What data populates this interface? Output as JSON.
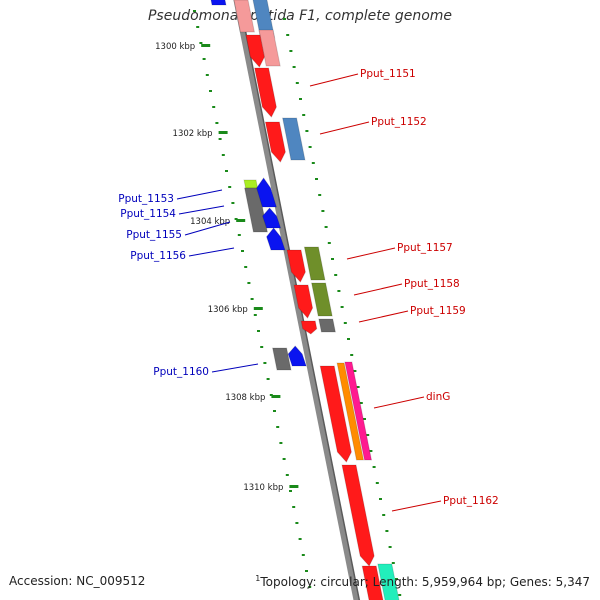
{
  "title": "Pseudomonas putida F1, complete genome",
  "footer": {
    "accession": "Accession: NC_009512",
    "note_mark": "1",
    "summary": "Topology: circular; Length: 5,959,964 bp; Genes: 5,347"
  },
  "colors": {
    "backbone": "#8a8a8a",
    "red": "#ff1a1a",
    "pink": "#f59a9a",
    "steel": "#4f86c0",
    "olive": "#6f8f2a",
    "gray": "#6a6a6a",
    "blue": "#0a14f0",
    "lime": "#aaee22",
    "orange": "#ff8c00",
    "magenta": "#ff1a90",
    "aqua": "#22eebb",
    "tick": "#1a8a1a",
    "label_red": "#cc0000",
    "label_blue": "#0000bb"
  },
  "scale": [
    "1300 kbp",
    "1302 kbp",
    "1304 kbp",
    "1306 kbp",
    "1308 kbp",
    "1310 kbp"
  ],
  "gene_labels": [
    {
      "text": "Pput_1151",
      "color": "label_red"
    },
    {
      "text": "Pput_1152",
      "color": "label_red"
    },
    {
      "text": "Pput_1153",
      "color": "label_blue"
    },
    {
      "text": "Pput_1154",
      "color": "label_blue"
    },
    {
      "text": "Pput_1155",
      "color": "label_blue"
    },
    {
      "text": "Pput_1156",
      "color": "label_blue"
    },
    {
      "text": "Pput_1157",
      "color": "label_red"
    },
    {
      "text": "Pput_1158",
      "color": "label_red"
    },
    {
      "text": "Pput_1159",
      "color": "label_red"
    },
    {
      "text": "Pput_1160",
      "color": "label_blue"
    },
    {
      "text": "dinG",
      "color": "label_red"
    },
    {
      "text": "Pput_1162",
      "color": "label_red"
    }
  ]
}
